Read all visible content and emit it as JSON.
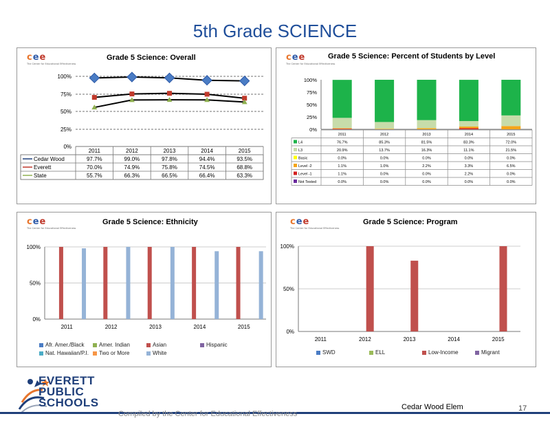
{
  "slide_title": "5th Grade SCIENCE",
  "logo": {
    "letters": [
      "c",
      "e",
      "e"
    ],
    "tagline": "The Center for Educational Effectiveness"
  },
  "footer": {
    "compiled": "Compiled by the Center for Educational Effectiveness",
    "school": "Cedar Wood Elem",
    "page": "17",
    "org_lines": [
      "EVERETT",
      "PUBLIC",
      "SCHOOLS"
    ]
  },
  "colors": {
    "title_blue": "#1f4e9a",
    "cedar_wood": "#4a7cc4",
    "everett": "#c0392b",
    "state": "#8fb050",
    "l4": "#1db34a",
    "l3": "#c7dcaa",
    "basic": "#ffff00",
    "level2": "#f5a51a",
    "level1": "#d42020",
    "not_tested": "#6a2a9e"
  },
  "chart_data": [
    {
      "type": "line",
      "title": "Grade 5 Science: Overall",
      "x": [
        "2011",
        "2012",
        "2013",
        "2014",
        "2015"
      ],
      "yticks": [
        "100%",
        "75%",
        "50%",
        "25%",
        "0%"
      ],
      "ylim": [
        0,
        100
      ],
      "series": [
        {
          "name": "Cedar Wood",
          "values": [
            97.7,
            99.0,
            97.8,
            94.4,
            93.5
          ],
          "labels": [
            "97.7%",
            "99.0%",
            "97.8%",
            "94.4%",
            "93.5%"
          ]
        },
        {
          "name": "Everett",
          "values": [
            70.0,
            74.9,
            75.8,
            74.5,
            68.8
          ],
          "labels": [
            "70.0%",
            "74.9%",
            "75.8%",
            "74.5%",
            "68.8%"
          ]
        },
        {
          "name": "State",
          "values": [
            55.7,
            66.3,
            66.5,
            66.4,
            63.3
          ],
          "labels": [
            "55.7%",
            "66.3%",
            "66.5%",
            "66.4%",
            "63.3%"
          ]
        }
      ],
      "gridlines": "dashed",
      "legend": "data-table"
    },
    {
      "type": "bar",
      "stacked": true,
      "title": "Grade 5 Science: Percent of Students by Level",
      "x": [
        "2011",
        "2012",
        "2013",
        "2014",
        "2015"
      ],
      "yticks": [
        "100%",
        "75%",
        "50%",
        "25%",
        "0%"
      ],
      "ylim": [
        0,
        100
      ],
      "series": [
        {
          "name": "Not Tested",
          "values": [
            0.0,
            0.0,
            0.0,
            0.0,
            0.0
          ],
          "labels": [
            "0.0%",
            "0.0%",
            "0.0%",
            "0.0%",
            "0.0%"
          ]
        },
        {
          "name": "Level -1",
          "values": [
            1.1,
            0.0,
            0.0,
            2.2,
            0.0
          ],
          "labels": [
            "1.1%",
            "0.0%",
            "0.0%",
            "2.2%",
            "0.0%"
          ]
        },
        {
          "name": "Level -2",
          "values": [
            1.1,
            1.0,
            2.2,
            3.3,
            6.5
          ],
          "labels": [
            "1.1%",
            "1.0%",
            "2.2%",
            "3.3%",
            "6.5%"
          ]
        },
        {
          "name": "Basic",
          "values": [
            0.0,
            0.0,
            0.0,
            0.0,
            0.0
          ],
          "labels": [
            "0.0%",
            "0.0%",
            "0.0%",
            "0.0%",
            "0.0%"
          ]
        },
        {
          "name": "L3",
          "values": [
            20.9,
            13.7,
            16.3,
            11.1,
            21.5
          ],
          "labels": [
            "20.9%",
            "13.7%",
            "16.3%",
            "11.1%",
            "21.5%"
          ]
        },
        {
          "name": "L4",
          "values": [
            76.7,
            85.3,
            81.5,
            83.3,
            72.0
          ],
          "labels": [
            "76.7%",
            "85.3%",
            "81.5%",
            "83.3%",
            "72.0%"
          ]
        }
      ],
      "table_order": [
        "L4",
        "L3",
        "Basic",
        "Level -2",
        "Level -1",
        "Not Tested"
      ],
      "legend": "data-table"
    },
    {
      "type": "bar",
      "title": "Grade 5 Science:  Ethnicity",
      "x": [
        "2011",
        "2012",
        "2013",
        "2014",
        "2015"
      ],
      "yticks": [
        "100%",
        "50%",
        "0%"
      ],
      "ylim": [
        0,
        100
      ],
      "series": [
        {
          "name": "Afr. Amer./Black",
          "color": "#4a7cc4",
          "values": [
            0,
            0,
            0,
            0,
            0
          ]
        },
        {
          "name": "Amer. Indian",
          "color": "#8fb050",
          "values": [
            0,
            0,
            0,
            0,
            0
          ]
        },
        {
          "name": "Asian",
          "color": "#c0504d",
          "values": [
            100,
            100,
            100,
            100,
            100
          ]
        },
        {
          "name": "Hispanic",
          "color": "#8064a2",
          "values": [
            0,
            0,
            0,
            0,
            0
          ]
        },
        {
          "name": "Nat. Hawaiian/P.I.",
          "color": "#4bacc6",
          "values": [
            0,
            0,
            0,
            0,
            0
          ]
        },
        {
          "name": "Two or More",
          "color": "#f79646",
          "values": [
            0,
            0,
            0,
            0,
            0
          ]
        },
        {
          "name": "White",
          "color": "#95b3d7",
          "values": [
            98,
            100,
            100,
            94,
            94
          ]
        }
      ],
      "legend": "bottom"
    },
    {
      "type": "bar",
      "title": "Grade 5 Science: Program",
      "x": [
        "2011",
        "2012",
        "2013",
        "2014",
        "2015"
      ],
      "yticks": [
        "100%",
        "50%",
        "0%"
      ],
      "ylim": [
        0,
        100
      ],
      "series": [
        {
          "name": "SWD",
          "color": "#4a7cc4",
          "values": [
            0,
            0,
            0,
            0,
            0
          ]
        },
        {
          "name": "ELL",
          "color": "#9bbb59",
          "values": [
            0,
            0,
            0,
            0,
            0
          ]
        },
        {
          "name": "Low-Income",
          "color": "#c0504d",
          "values": [
            0,
            100,
            83,
            0,
            100
          ]
        },
        {
          "name": "Migrant",
          "color": "#8064a2",
          "values": [
            0,
            0,
            0,
            0,
            0
          ]
        }
      ],
      "legend": "bottom"
    }
  ]
}
